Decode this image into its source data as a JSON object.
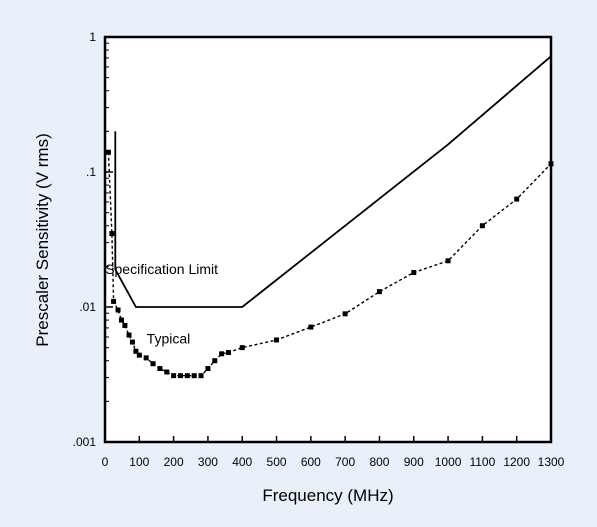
{
  "chart_data": {
    "type": "line",
    "xlabel": "Frequency (MHz)",
    "ylabel": "Prescaler Sensitivity (V rms)",
    "xlim": [
      0,
      1300
    ],
    "ylim": [
      0.001,
      1
    ],
    "yscale": "log",
    "grid": false,
    "background": "#eaf0fa",
    "plot_background": "#ffffff",
    "x_ticks": [
      0,
      100,
      200,
      300,
      400,
      500,
      600,
      700,
      800,
      900,
      1000,
      1100,
      1200,
      1300
    ],
    "x_tick_labels": [
      "0",
      "100",
      "200",
      "300",
      "400",
      "500",
      "600",
      "700",
      "800",
      "900",
      "1000",
      "1100",
      "1200",
      "1300"
    ],
    "y_ticks": [
      0.001,
      0.01,
      0.1,
      1
    ],
    "y_tick_labels": [
      ".001",
      ".01",
      ".1",
      "1"
    ],
    "annotations": [
      {
        "text": "Specification Limit",
        "x": 165,
        "y": 0.0175
      },
      {
        "text": "Typical",
        "x": 185,
        "y": 0.00535
      }
    ],
    "series": [
      {
        "line_style": "solid",
        "color": "#000000",
        "points": [
          [
            30,
            0.2
          ],
          [
            30,
            0.019
          ],
          [
            90,
            0.01
          ],
          [
            400,
            0.01
          ],
          [
            1000,
            0.16
          ],
          [
            1300,
            0.72
          ]
        ]
      },
      {
        "line_style": "dotted",
        "color": "#000000",
        "marker": "square",
        "points": [
          [
            10,
            0.14
          ],
          [
            20,
            0.035
          ],
          [
            25,
            0.011
          ],
          [
            38,
            0.0095
          ],
          [
            48,
            0.008
          ],
          [
            58,
            0.0073
          ],
          [
            70,
            0.0062
          ],
          [
            80,
            0.0055
          ],
          [
            90,
            0.0047
          ],
          [
            100,
            0.0044
          ],
          [
            120,
            0.0042
          ],
          [
            140,
            0.0038
          ],
          [
            160,
            0.0035
          ],
          [
            180,
            0.0033
          ],
          [
            200,
            0.0031
          ],
          [
            220,
            0.0031
          ],
          [
            240,
            0.0031
          ],
          [
            260,
            0.0031
          ],
          [
            280,
            0.0031
          ],
          [
            300,
            0.0035
          ],
          [
            320,
            0.004
          ],
          [
            340,
            0.0045
          ],
          [
            360,
            0.0046
          ],
          [
            400,
            0.005
          ],
          [
            500,
            0.0057
          ],
          [
            600,
            0.0071
          ],
          [
            700,
            0.0089
          ],
          [
            800,
            0.013
          ],
          [
            900,
            0.018
          ],
          [
            1000,
            0.022
          ],
          [
            1100,
            0.04
          ],
          [
            1200,
            0.063
          ],
          [
            1300,
            0.115
          ]
        ]
      }
    ]
  }
}
